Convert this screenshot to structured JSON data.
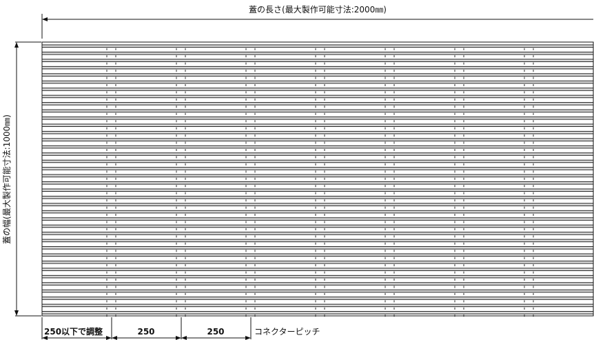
{
  "drawing": {
    "length_label": "蓋の長さ(最大製作可能寸法:2000㎜)",
    "width_label": "蓋の幅(最大製作可能寸法:1000㎜)",
    "bottom_labels": {
      "first_span": "250以下で調整",
      "second_span": "250",
      "third_span": "250",
      "pitch_note": "コネクターピッチ"
    },
    "colors": {
      "line": "#111111",
      "bar_fill": "#d9d9d9",
      "background": "#ffffff"
    }
  }
}
